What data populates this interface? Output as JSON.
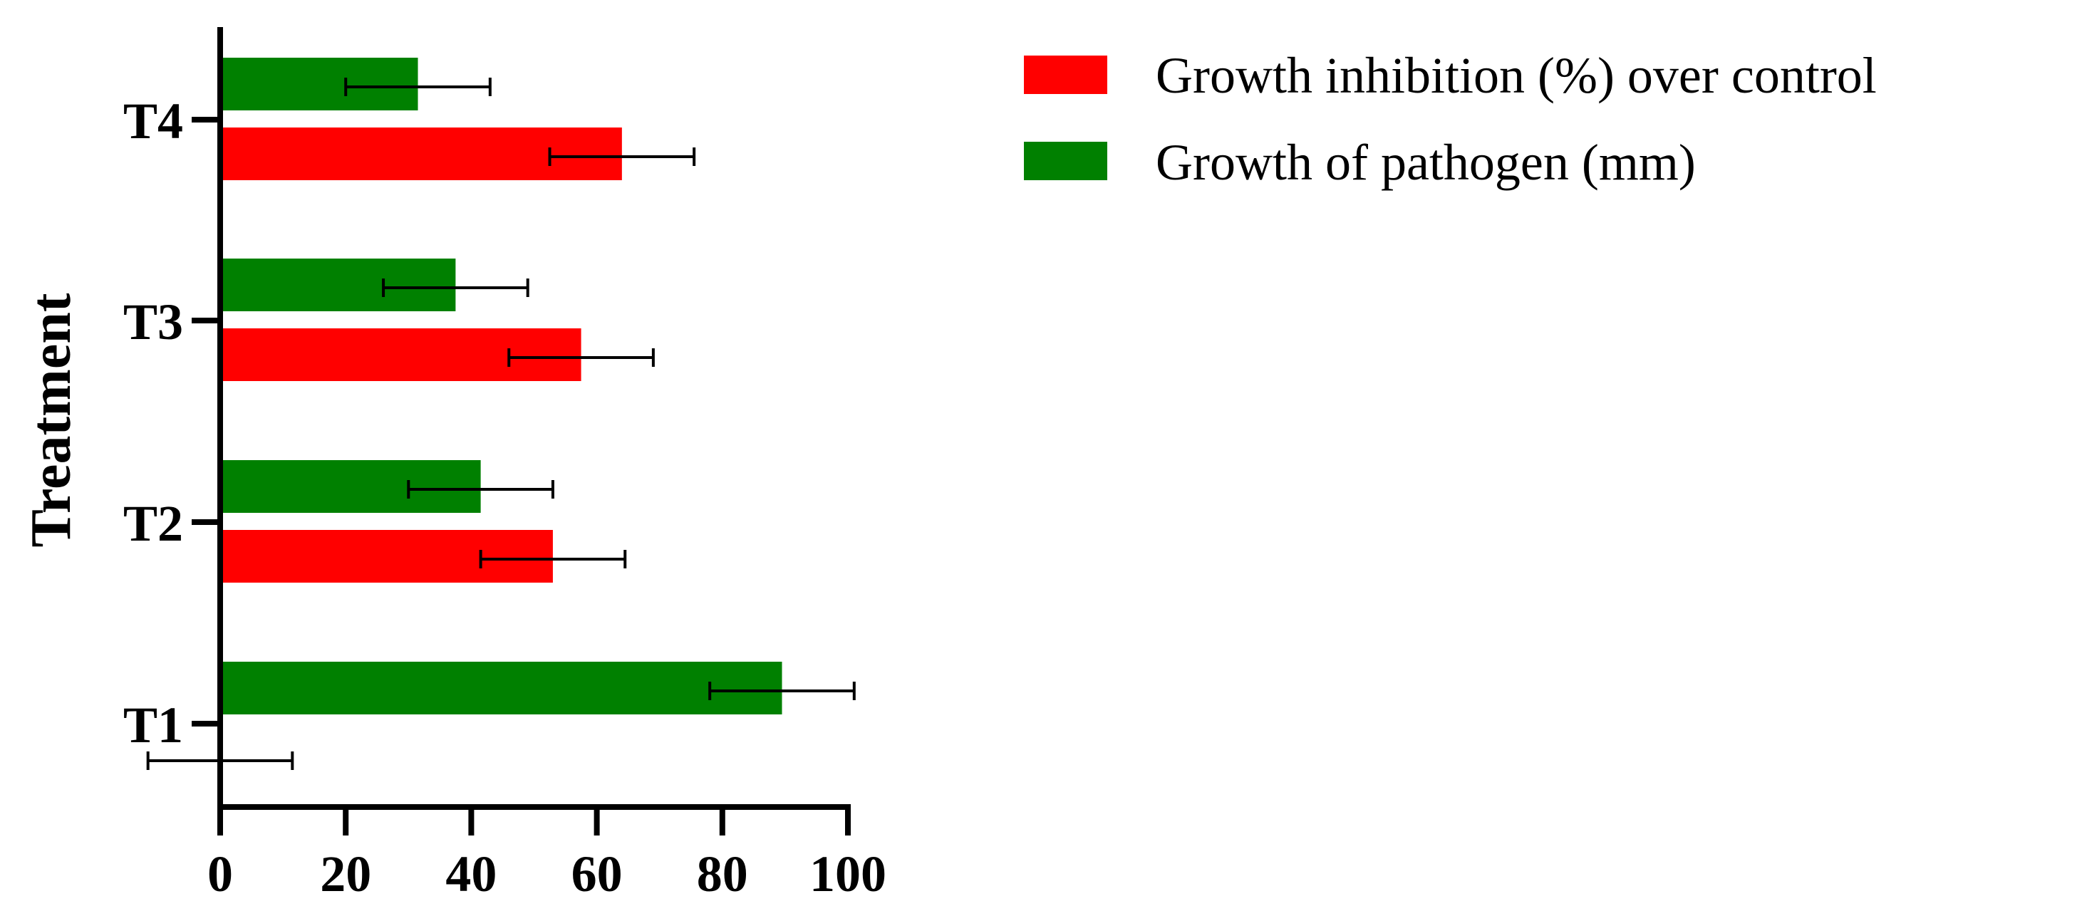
{
  "chart_data": {
    "type": "bar",
    "orientation": "horizontal",
    "title": "",
    "xlabel": "",
    "ylabel": "Treatment",
    "categories": [
      "T1",
      "T2",
      "T3",
      "T4"
    ],
    "xlim": [
      0,
      100
    ],
    "xticks": [
      "0",
      "20",
      "40",
      "60",
      "80",
      "100"
    ],
    "grid": false,
    "legend_position": "top-right",
    "series": [
      {
        "name": "Growth inhibition (%) over control",
        "color": "#ff0000",
        "values": [
          0,
          53,
          57.5,
          64
        ],
        "errors": [
          11.5,
          11.5,
          11.5,
          11.5
        ]
      },
      {
        "name": "Growth of pathogen (mm)",
        "color": "#008000",
        "values": [
          89.5,
          41.5,
          37.5,
          31.5
        ],
        "errors": [
          11.5,
          11.5,
          11.5,
          11.5
        ]
      }
    ]
  }
}
